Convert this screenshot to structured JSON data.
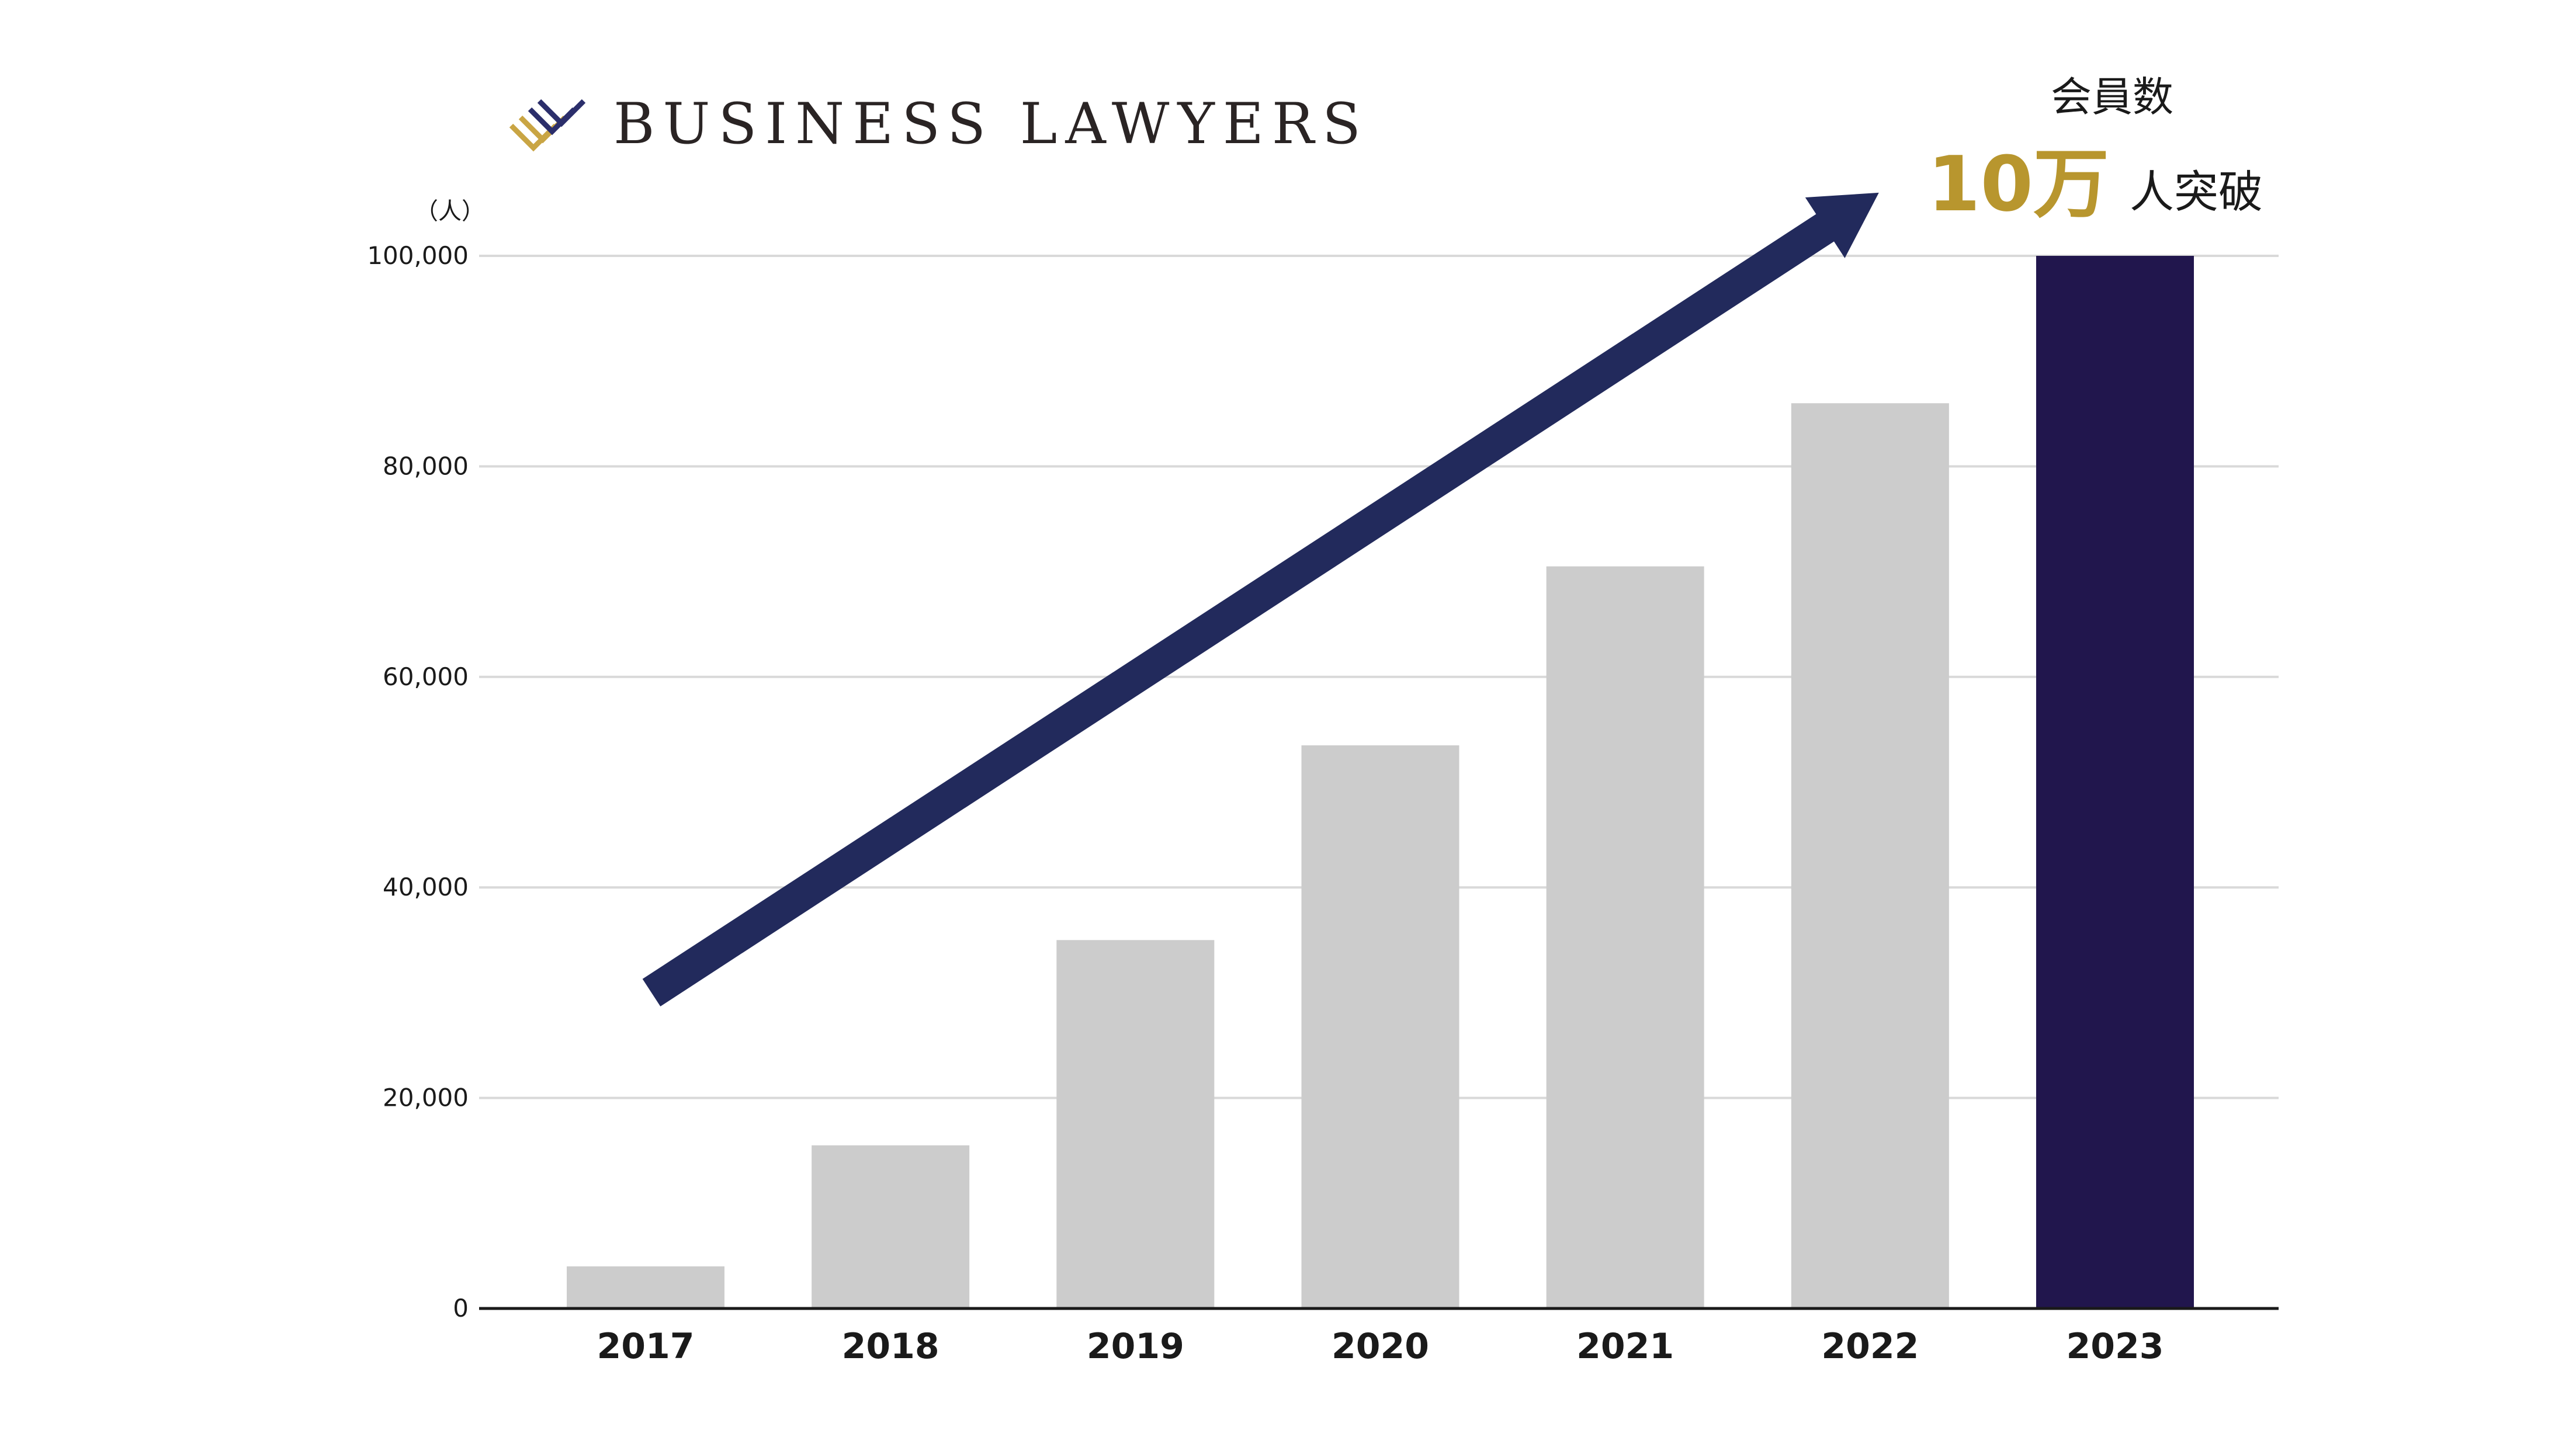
{
  "brand": {
    "name": "BUSINESS LAWYERS",
    "logo_icon": "stacked-diamond-logo-icon",
    "logo_colors": [
      "#c9a544",
      "#2b2e6b"
    ]
  },
  "callout": {
    "title": "会員数",
    "highlight": "10万",
    "suffix": "人突破",
    "highlight_color": "#b8962e"
  },
  "chart_data": {
    "type": "bar",
    "unit_label": "（人）",
    "categories": [
      "2017",
      "2018",
      "2019",
      "2020",
      "2021",
      "2022",
      "2023"
    ],
    "values": [
      4000,
      15500,
      35000,
      53500,
      70500,
      86000,
      100000
    ],
    "ylim": [
      0,
      100000
    ],
    "yticks": [
      0,
      20000,
      40000,
      60000,
      80000,
      100000
    ],
    "ytick_labels": [
      "0",
      "20,000",
      "40,000",
      "60,000",
      "80,000",
      "100,000"
    ],
    "grid": true,
    "bar_color": "#cccccc",
    "highlight_bar_color": "#21164d",
    "highlight_index": 6,
    "arrow": {
      "from": {
        "x": "2017",
        "y": 30000
      },
      "to": {
        "x": "2022",
        "y": 106000
      },
      "color": "#222a5c"
    }
  }
}
